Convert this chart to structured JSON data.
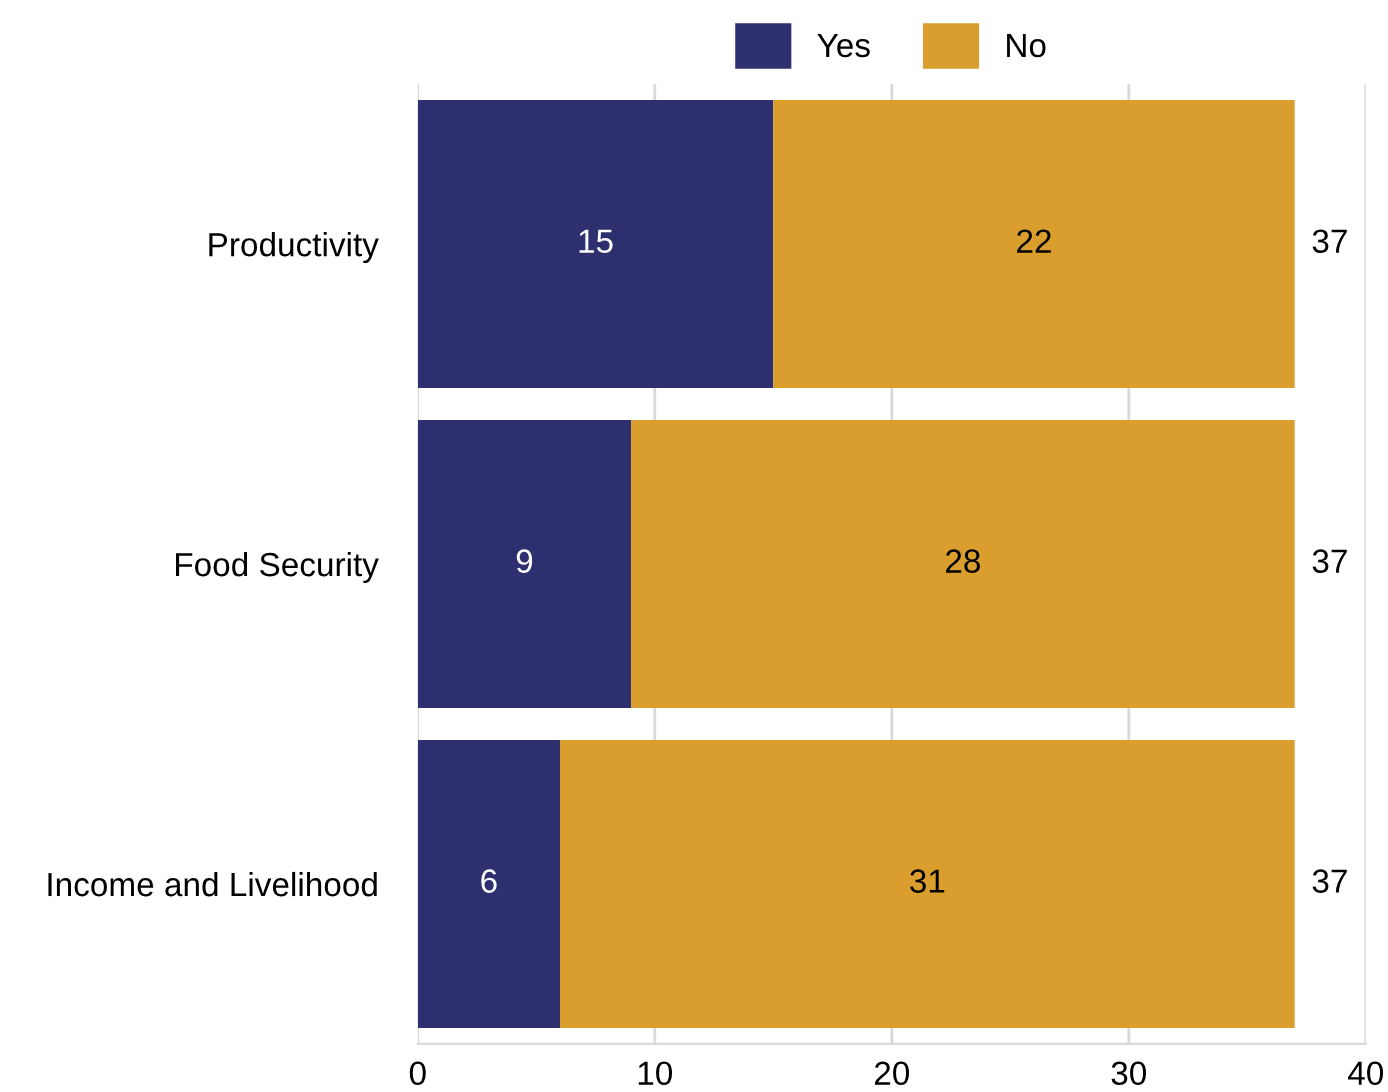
{
  "chart_data": {
    "type": "bar",
    "orientation": "horizontal",
    "stacked": true,
    "categories": [
      "Productivity",
      "Food Security",
      "Income and Livelihood"
    ],
    "series": [
      {
        "name": "Yes",
        "color": "#2e2f6e",
        "values": [
          15,
          9,
          6
        ]
      },
      {
        "name": "No",
        "color": "#d99e2d",
        "values": [
          22,
          28,
          31
        ]
      }
    ],
    "totals": [
      "37",
      "37",
      "37"
    ],
    "data_labels": true,
    "xlim": [
      0,
      40
    ],
    "xticks": [
      0,
      10,
      20,
      30,
      40
    ],
    "grid": "x",
    "legend": "top"
  }
}
